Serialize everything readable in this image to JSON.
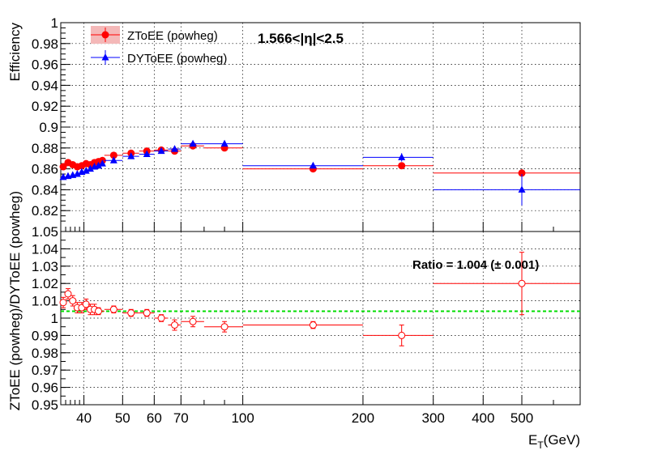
{
  "chart_data": [
    {
      "type": "scatter",
      "panel": "top",
      "ylabel": "Efficiency",
      "annotation": "1.566<|η|<2.5",
      "ylim": [
        0.8,
        1.0
      ],
      "xlim": [
        35,
        700
      ],
      "xscale": "log",
      "grid": true,
      "legend_position": "top-left",
      "y_ticks": [
        0.82,
        0.84,
        0.86,
        0.88,
        0.9,
        0.92,
        0.94,
        0.96,
        0.98,
        1
      ],
      "y_tick_labels": [
        "0.82",
        "0.84",
        "0.86",
        "0.88",
        "0.9",
        "0.92",
        "0.94",
        "0.96",
        "0.98",
        "1"
      ],
      "series": [
        {
          "name": "ZToEE (powheg)",
          "color": "#ff0000",
          "marker": "circle",
          "x": [
            35.5,
            36.5,
            37.5,
            38.5,
            39.5,
            40.5,
            41.5,
            42.5,
            43.5,
            44.5,
            47.5,
            52.5,
            57.5,
            62.5,
            67.5,
            75,
            90,
            150,
            250,
            500
          ],
          "xlow": [
            35,
            36,
            37,
            38,
            39,
            40,
            41,
            42,
            43,
            44,
            45,
            50,
            55,
            60,
            65,
            70,
            80,
            100,
            200,
            300
          ],
          "xhigh": [
            36,
            37,
            38,
            39,
            40,
            41,
            42,
            43,
            44,
            45,
            50,
            55,
            60,
            65,
            70,
            80,
            100,
            200,
            300,
            700
          ],
          "y": [
            0.862,
            0.866,
            0.864,
            0.862,
            0.863,
            0.865,
            0.864,
            0.866,
            0.867,
            0.868,
            0.873,
            0.875,
            0.877,
            0.878,
            0.877,
            0.882,
            0.88,
            0.86,
            0.863,
            0.856
          ],
          "yerr": [
            0.002,
            0.002,
            0.002,
            0.002,
            0.002,
            0.002,
            0.002,
            0.002,
            0.002,
            0.002,
            0.001,
            0.001,
            0.001,
            0.001,
            0.001,
            0.001,
            0.001,
            0.001,
            0.002,
            0.002
          ]
        },
        {
          "name": "DYToEE (powheg)",
          "color": "#0000ff",
          "marker": "triangle",
          "x": [
            35.5,
            36.5,
            37.5,
            38.5,
            39.5,
            40.5,
            41.5,
            42.5,
            43.5,
            44.5,
            47.5,
            52.5,
            57.5,
            62.5,
            67.5,
            75,
            90,
            150,
            250,
            500
          ],
          "xlow": [
            35,
            36,
            37,
            38,
            39,
            40,
            41,
            42,
            43,
            44,
            45,
            50,
            55,
            60,
            65,
            70,
            80,
            100,
            200,
            300
          ],
          "xhigh": [
            36,
            37,
            38,
            39,
            40,
            41,
            42,
            43,
            44,
            45,
            50,
            55,
            60,
            65,
            70,
            80,
            100,
            200,
            300,
            700
          ],
          "y": [
            0.852,
            0.853,
            0.854,
            0.855,
            0.857,
            0.858,
            0.86,
            0.862,
            0.863,
            0.865,
            0.868,
            0.872,
            0.874,
            0.877,
            0.879,
            0.884,
            0.884,
            0.863,
            0.871,
            0.84
          ],
          "yerr": [
            0.002,
            0.002,
            0.002,
            0.002,
            0.002,
            0.002,
            0.002,
            0.002,
            0.002,
            0.002,
            0.002,
            0.002,
            0.002,
            0.002,
            0.002,
            0.002,
            0.002,
            0.002,
            0.004,
            0.015
          ]
        }
      ]
    },
    {
      "type": "scatter",
      "panel": "bottom",
      "ylabel": "ZToEE (powheg)/DYToEE (powheg)",
      "xlabel": "E",
      "xlabel_sub": "T",
      "xlabel_unit": "(GeV)",
      "annotation": "Ratio = 1.004 (± 0.001)",
      "ylim": [
        0.95,
        1.05
      ],
      "xlim": [
        35,
        700
      ],
      "xscale": "log",
      "grid": true,
      "y_ticks": [
        0.95,
        0.96,
        0.97,
        0.98,
        0.99,
        1,
        1.01,
        1.02,
        1.03,
        1.04,
        1.05
      ],
      "y_tick_labels": [
        "0.95",
        "0.96",
        "0.97",
        "0.98",
        "0.99",
        "1",
        "1.01",
        "1.02",
        "1.03",
        "1.04",
        "1.05"
      ],
      "x_ticks": [
        40,
        50,
        60,
        70,
        100,
        200,
        300,
        400,
        500
      ],
      "x_tick_labels": [
        "40",
        "50",
        "60",
        "70",
        "100",
        "200",
        "300",
        "400",
        "500"
      ],
      "fit_line": {
        "y": 1.004,
        "color": "#00dd00"
      },
      "series": [
        {
          "name": "",
          "color": "#ff0000",
          "marker": "open-circle",
          "x": [
            35.5,
            36.5,
            37.5,
            38.5,
            39.5,
            40.5,
            41.5,
            42.5,
            43.5,
            47.5,
            52.5,
            57.5,
            62.5,
            67.5,
            75,
            90,
            150,
            250,
            500
          ],
          "xlow": [
            35,
            36,
            37,
            38,
            39,
            40,
            41,
            42,
            43,
            45,
            50,
            55,
            60,
            65,
            70,
            80,
            100,
            200,
            300
          ],
          "xhigh": [
            36,
            37,
            38,
            39,
            40,
            41,
            42,
            43,
            45,
            50,
            55,
            60,
            65,
            70,
            80,
            100,
            200,
            300,
            700
          ],
          "y": [
            1.009,
            1.014,
            1.01,
            1.006,
            1.006,
            1.008,
            1.005,
            1.005,
            1.004,
            1.005,
            1.003,
            1.003,
            1.0,
            0.996,
            0.998,
            0.995,
            0.996,
            0.99,
            1.02
          ],
          "yerr": [
            0.003,
            0.003,
            0.003,
            0.003,
            0.003,
            0.003,
            0.003,
            0.003,
            0.002,
            0.002,
            0.002,
            0.002,
            0.002,
            0.003,
            0.003,
            0.003,
            0.002,
            0.006,
            0.018
          ]
        }
      ]
    }
  ]
}
